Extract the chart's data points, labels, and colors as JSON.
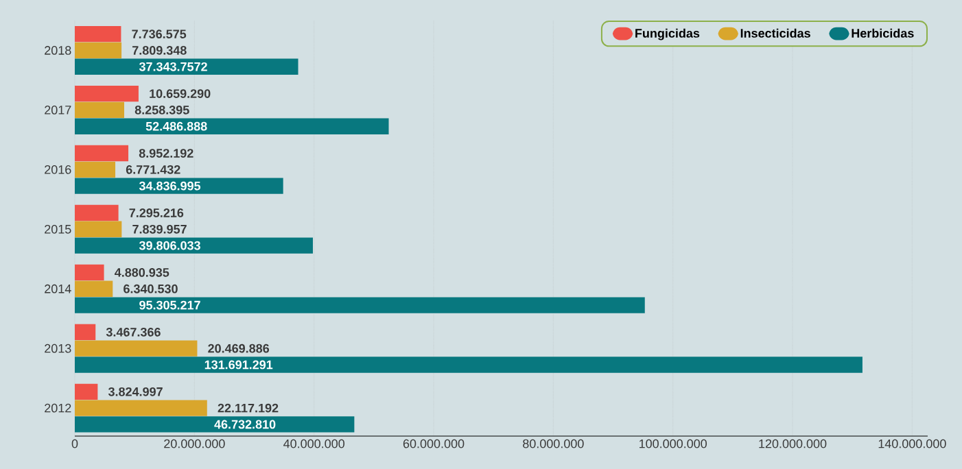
{
  "chart_data": {
    "type": "bar",
    "orientation": "horizontal",
    "categories": [
      "2018",
      "2017",
      "2016",
      "2015",
      "2014",
      "2013",
      "2012"
    ],
    "series": [
      {
        "name": "Fungicidas",
        "color": "#ef5148",
        "values": [
          7736575,
          10659290,
          8952192,
          7295216,
          4880935,
          3467366,
          3824997
        ],
        "value_labels": [
          "7.736.575",
          "10.659.290",
          "8.952.192",
          "7.295.216",
          "4.880.935",
          "3.467.366",
          "3.824.997"
        ]
      },
      {
        "name": "Insecticidas",
        "color": "#d9a62c",
        "values": [
          7809348,
          8258395,
          6771432,
          7839957,
          6340530,
          20469886,
          22117192
        ],
        "value_labels": [
          "7.809.348",
          "8.258.395",
          "6.771.432",
          "7.839.957",
          "6.340.530",
          "20.469.886",
          "22.117.192"
        ]
      },
      {
        "name": "Herbicidas",
        "color": "#08787f",
        "values": [
          37343757,
          52486888,
          34836995,
          39806033,
          95305217,
          131691291,
          46732810
        ],
        "value_labels": [
          "37.343.7572",
          "52.486.888",
          "34.836.995",
          "39.806.033",
          "95.305.217",
          "131.691.291",
          "46.732.810"
        ]
      }
    ],
    "xlim": [
      0,
      142600000
    ],
    "xticks": [
      {
        "value": 0,
        "label": "0"
      },
      {
        "value": 20000000,
        "label": "20.000.000"
      },
      {
        "value": 40000000,
        "label": "40.000.000"
      },
      {
        "value": 60000000,
        "label": "60.000.000"
      },
      {
        "value": 80000000,
        "label": "80.000.000"
      },
      {
        "value": 100000000,
        "label": "100.000.000"
      },
      {
        "value": 120000000,
        "label": "120.000.000"
      },
      {
        "value": 140000000,
        "label": "140.000.000"
      }
    ],
    "grid": "x",
    "legend": "top right"
  }
}
